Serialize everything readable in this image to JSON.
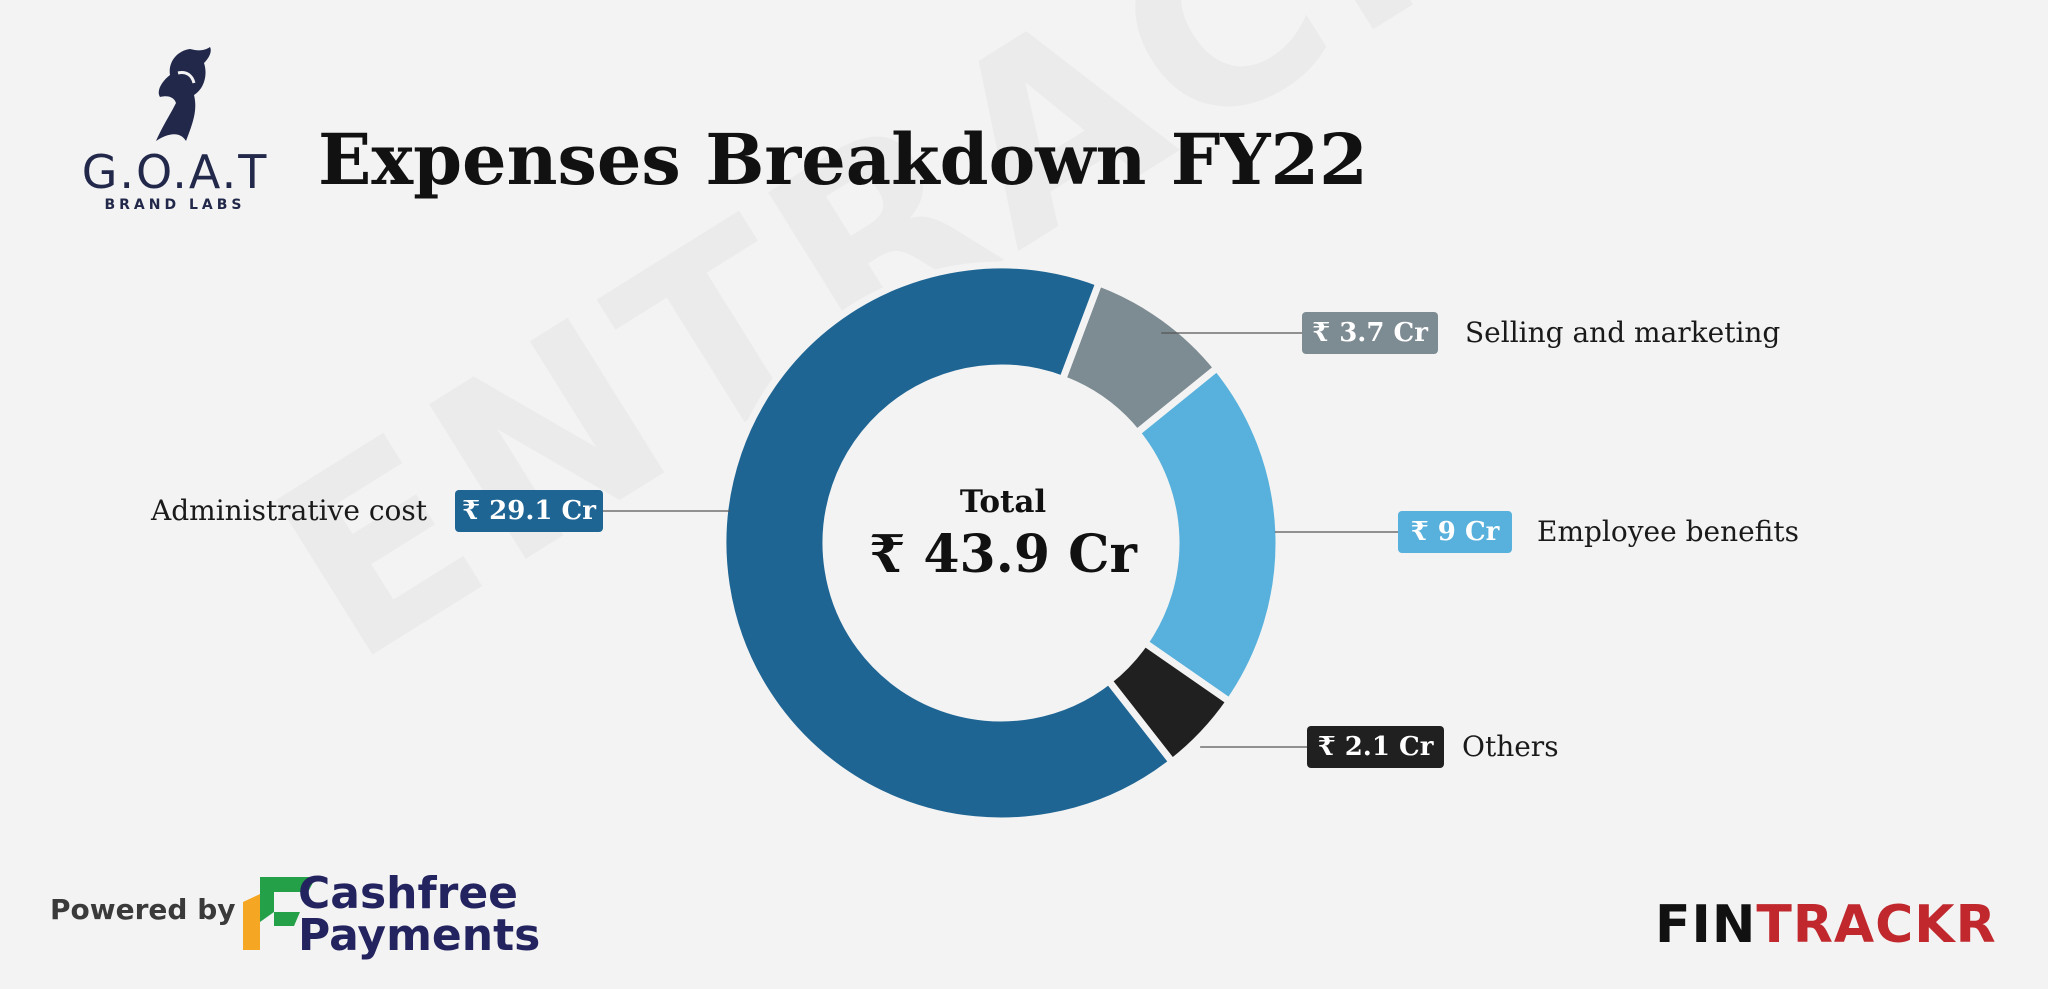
{
  "watermark": "ENTRACKR",
  "brand": {
    "name": "G.O.A.T",
    "tagline": "BRAND LABS"
  },
  "title": "Expenses Breakdown FY22",
  "center": {
    "label": "Total",
    "value": "₹ 43.9 Cr"
  },
  "chart_data": {
    "type": "pie",
    "title": "Expenses Breakdown FY22",
    "total": 43.9,
    "unit": "₹ Cr",
    "slices": [
      {
        "name": "Selling and marketing",
        "value": 3.7,
        "label": "₹ 3.7 Cr",
        "color": "#7d8b93"
      },
      {
        "name": "Employee benefits",
        "value": 9,
        "label": "₹ 9 Cr",
        "color": "#57b1dc"
      },
      {
        "name": "Others",
        "value": 2.1,
        "label": "₹ 2.1 Cr",
        "color": "#202020"
      },
      {
        "name": "Administrative cost",
        "value": 29.1,
        "label": "₹ 29.1 Cr",
        "color": "#1e6594"
      }
    ]
  },
  "footer": {
    "powered_by": "Powered by",
    "cashfree_line1": "Cashfree",
    "cashfree_line2": "Payments",
    "fintrackr_a": "FIN",
    "fintrackr_b": "TRACKR"
  }
}
